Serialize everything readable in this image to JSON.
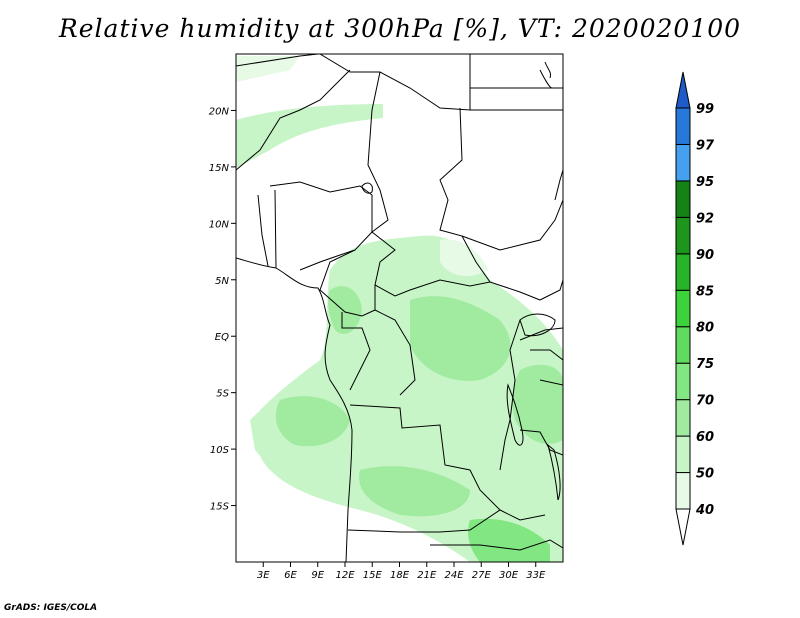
{
  "title": "Relative humidity at 300hPa [%], VT: 2020020100",
  "credit": "GrADS: IGES/COLA",
  "map": {
    "lon_range": [
      0,
      36
    ],
    "lat_range": [
      -20,
      25
    ],
    "lat_ticks": [
      {
        "value": 20,
        "label": "20N"
      },
      {
        "value": 15,
        "label": "15N"
      },
      {
        "value": 10,
        "label": "10N"
      },
      {
        "value": 5,
        "label": "5N"
      },
      {
        "value": 0,
        "label": "EQ"
      },
      {
        "value": -5,
        "label": "5S"
      },
      {
        "value": -10,
        "label": "10S"
      },
      {
        "value": -15,
        "label": "15S"
      }
    ],
    "lon_ticks": [
      {
        "value": 3,
        "label": "3E"
      },
      {
        "value": 6,
        "label": "6E"
      },
      {
        "value": 9,
        "label": "9E"
      },
      {
        "value": 12,
        "label": "12E"
      },
      {
        "value": 15,
        "label": "15E"
      },
      {
        "value": 18,
        "label": "18E"
      },
      {
        "value": 21,
        "label": "21E"
      },
      {
        "value": 24,
        "label": "24E"
      },
      {
        "value": 27,
        "label": "27E"
      },
      {
        "value": 30,
        "label": "30E"
      },
      {
        "value": 33,
        "label": "33E"
      }
    ]
  },
  "colorbar": {
    "levels": [
      "40",
      "50",
      "60",
      "70",
      "75",
      "80",
      "85",
      "90",
      "92",
      "95",
      "97",
      "99"
    ],
    "colors": [
      "#ffffff",
      "#e6fae6",
      "#c8f5c8",
      "#a0eba0",
      "#82e682",
      "#5fdc5f",
      "#3cd23c",
      "#28b428",
      "#1e961e",
      "#148214",
      "#46a0f0",
      "#2878dc",
      "#1e5ac8"
    ]
  },
  "colors": {
    "frame": "#000000",
    "background": "#ffffff"
  }
}
